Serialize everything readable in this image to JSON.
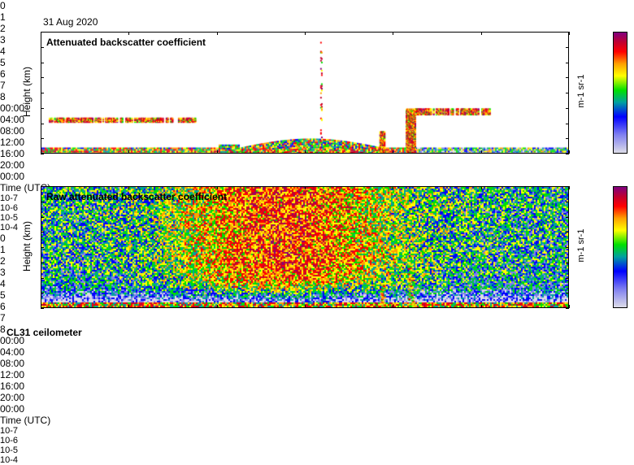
{
  "date": "31 Aug 2020",
  "instrument": "CL31 ceilometer",
  "chart_data": [
    {
      "type": "heatmap",
      "title": "Attenuated backscatter coefficient",
      "xlabel": "Time (UTC)",
      "ylabel": "Height (km)",
      "xticks": [
        "00:00",
        "04:00",
        "08:00",
        "12:00",
        "16:00",
        "20:00",
        "00:00"
      ],
      "xlim_hours": [
        0,
        24
      ],
      "yticks": [
        "0",
        "1",
        "2",
        "3",
        "4",
        "5",
        "6",
        "7",
        "8"
      ],
      "ylim": [
        0,
        8
      ],
      "colorbar": {
        "label": "m-1 sr-1",
        "ticks": [
          "10-7",
          "10-6",
          "10-5",
          "10-4"
        ],
        "range_log10": [
          -7,
          -4
        ]
      },
      "features": [
        {
          "name": "boundary layer",
          "t": [
            0,
            24
          ],
          "h": [
            0,
            0.4
          ]
        },
        {
          "name": "elevated aerosol",
          "t": [
            9,
            15.5
          ],
          "h": [
            0.3,
            1.1
          ]
        },
        {
          "name": "cloud layer",
          "t": [
            0.3,
            7
          ],
          "h": [
            2.1,
            2.35
          ]
        },
        {
          "name": "plume",
          "t": [
            15.4,
            15.6
          ],
          "h": [
            0,
            1.5
          ]
        },
        {
          "name": "plume",
          "t": [
            16.6,
            17.0
          ],
          "h": [
            0,
            3
          ]
        },
        {
          "name": "cloud layer",
          "t": [
            17,
            20.5
          ],
          "h": [
            2.6,
            3.0
          ]
        },
        {
          "name": "streak",
          "t": [
            12.7,
            12.75
          ],
          "h": [
            0,
            7.5
          ]
        }
      ]
    },
    {
      "type": "heatmap",
      "title": "Raw attenuated backscatter coefficient",
      "xlabel": "Time (UTC)",
      "ylabel": "Height (km)",
      "xticks": [
        "00:00",
        "04:00",
        "08:00",
        "12:00",
        "16:00",
        "20:00",
        "00:00"
      ],
      "xlim_hours": [
        0,
        24
      ],
      "yticks": [
        "0",
        "1",
        "2",
        "3",
        "4",
        "5",
        "6",
        "7",
        "8"
      ],
      "ylim": [
        0,
        8
      ],
      "colorbar": {
        "label": "m-1 sr-1",
        "ticks": [
          "10-7",
          "10-6",
          "10-5",
          "10-4"
        ],
        "range_log10": [
          -7,
          -4
        ]
      }
    }
  ]
}
